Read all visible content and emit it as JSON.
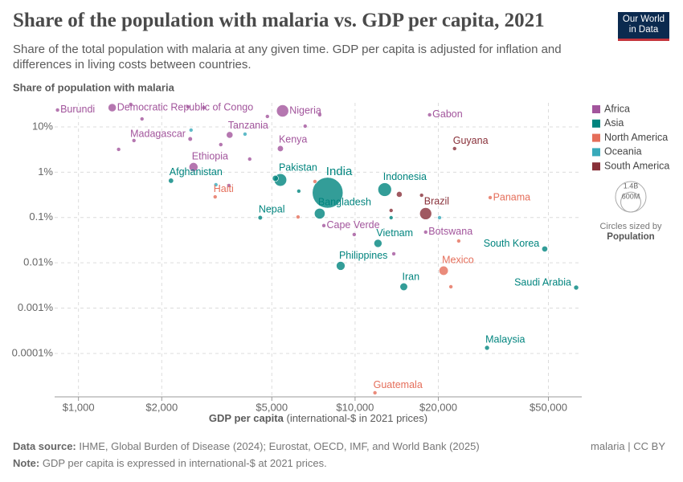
{
  "logo": "Our World in Data",
  "chart_data": {
    "type": "scatter",
    "title": "Share of the population with malaria vs. GDP per capita, 2021",
    "subtitle": "Share of the total population with malaria at any given time. GDP per capita is adjusted for inflation and differences in living costs between countries.",
    "y_label": "Share of population with malaria",
    "x_label": "GDP per capita",
    "x_label_unit": "(international-$ in 2021 prices)",
    "log_x": true,
    "log_y": true,
    "grid": true,
    "legend_position": "right",
    "xlim": [
      820,
      66000
    ],
    "ylim": [
      1.1e-05,
      34
    ],
    "xticks": [
      {
        "value": 1000,
        "label": "$1,000"
      },
      {
        "value": 2000,
        "label": "$2,000"
      },
      {
        "value": 5000,
        "label": "$5,000"
      },
      {
        "value": 10000,
        "label": "$10,000"
      },
      {
        "value": 20000,
        "label": "$20,000"
      },
      {
        "value": 50000,
        "label": "$50,000"
      }
    ],
    "yticks": [
      {
        "value": 0.0001,
        "label": "0.0001%"
      },
      {
        "value": 0.001,
        "label": "0.001%"
      },
      {
        "value": 0.01,
        "label": "0.01%"
      },
      {
        "value": 0.1,
        "label": "0.1%"
      },
      {
        "value": 1,
        "label": "1%"
      },
      {
        "value": 10,
        "label": "10%"
      }
    ],
    "size_legend": {
      "title": "Circles sized by",
      "variable": "Population",
      "ticks": [
        {
          "value": 1400000000,
          "label": "1.4B"
        },
        {
          "value": 600000000,
          "label": "600M"
        }
      ]
    },
    "series": [
      {
        "name": "Africa",
        "color": "#a2559c",
        "labels": [
          "Burundi",
          "Democratic Republic of Congo",
          "Nigeria",
          "Gabon",
          "Tanzania",
          "Madagascar",
          "Kenya",
          "Ethiopia",
          "Cape Verde",
          "Botswana",
          null,
          null,
          null,
          null,
          null,
          null,
          null,
          null,
          null,
          null,
          null,
          null,
          null,
          null
        ],
        "x": [
          840,
          1324,
          5470,
          18600,
          3520,
          2535,
          5370,
          2605,
          7710,
          18000,
          1545,
          1697,
          1587,
          1397,
          2486,
          3270,
          4160,
          4820,
          6600,
          7450,
          9930,
          13800,
          3500,
          2840
        ],
        "values": [
          23.6,
          26.6,
          22.6,
          18.5,
          6.65,
          5.42,
          3.32,
          1.3,
          0.0662,
          0.0477,
          31.4,
          15,
          5,
          3.19,
          27.8,
          4.07,
          1.95,
          17,
          10.4,
          18.5,
          0.0421,
          0.0158,
          0.508,
          26.6
        ],
        "sizes": [
          13000000,
          100000000,
          220000000,
          2400000,
          65000000,
          30000000,
          54000000,
          120000000,
          500000,
          2600000,
          10000000,
          8000000,
          20000000,
          5000000,
          6000000,
          25000000,
          4000000,
          8000000,
          14000000,
          3000000,
          1300000,
          5000000,
          1000000,
          5000000
        ]
      },
      {
        "name": "Asia",
        "color": "#00847e",
        "labels": [
          "India",
          "Indonesia",
          "Pakistan",
          "Afghanistan",
          "Bangladesh",
          "Nepal",
          "Vietnam",
          "Philippines",
          "Iran",
          "South Korea",
          "Saudi Arabia",
          "Malaysia",
          null,
          null,
          null
        ],
        "x": [
          7960,
          12800,
          5370,
          2160,
          7450,
          4540,
          12100,
          8870,
          15000,
          48500,
          63000,
          30000,
          5150,
          6260,
          13500
        ],
        "values": [
          0.352,
          0.414,
          0.676,
          0.649,
          0.122,
          0.0991,
          0.0269,
          0.00857,
          0.00296,
          0.0202,
          0.00284,
          0.000133,
          0.733,
          0.382,
          0.099
        ],
        "sizes": [
          1410000000,
          275000000,
          235000000,
          40000000,
          170000000,
          30000000,
          98000000,
          115000000,
          88000000,
          52000000,
          36000000,
          34000000,
          55000000,
          5000000,
          3000000
        ]
      },
      {
        "name": "North America",
        "color": "#e56e5a",
        "labels": [
          "Haiti",
          "Panama",
          "Mexico",
          "Guatemala",
          null,
          null,
          null,
          null
        ],
        "x": [
          3120,
          30800,
          20900,
          11800,
          6220,
          23700,
          22200,
          7160
        ],
        "values": [
          0.286,
          0.275,
          0.0067,
          1.35e-05,
          0.103,
          0.0303,
          0.00296,
          0.623
        ],
        "sizes": [
          11000000,
          4400000,
          127000000,
          17000000,
          6000000,
          3000000,
          3000000,
          2000000
        ]
      },
      {
        "name": "Oceania",
        "color": "#38aaba",
        "labels": [
          null,
          null,
          null,
          null
        ],
        "x": [
          20200,
          2553,
          3140,
          4000
        ],
        "values": [
          0.0991,
          8.49,
          0.529,
          6.92
        ],
        "sizes": [
          10000000,
          700000,
          300000,
          300000
        ]
      },
      {
        "name": "South America",
        "color": "#883039",
        "labels": [
          "Guyana",
          "Brazil",
          null,
          null,
          null
        ],
        "x": [
          22900,
          18000,
          14450,
          17400,
          13500
        ],
        "values": [
          3.32,
          0.122,
          0.324,
          0.31,
          0.143
        ],
        "sizes": [
          800000,
          215000000,
          50000000,
          20000000,
          3000000
        ]
      }
    ]
  },
  "footer": {
    "source_label": "Data source:",
    "source": "IHME, Global Burden of Disease (2024); Eurostat, OECD, IMF, and World Bank (2025)",
    "note_label": "Note:",
    "note": "GDP per capita is expressed in international-$ at 2021 prices.",
    "license": "malaria | CC BY"
  }
}
